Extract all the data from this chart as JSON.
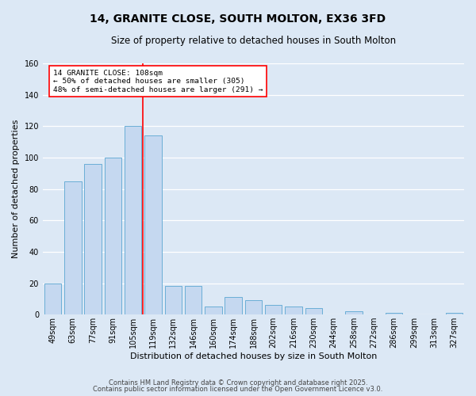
{
  "title": "14, GRANITE CLOSE, SOUTH MOLTON, EX36 3FD",
  "subtitle": "Size of property relative to detached houses in South Molton",
  "xlabel": "Distribution of detached houses by size in South Molton",
  "ylabel": "Number of detached properties",
  "bar_labels": [
    "49sqm",
    "63sqm",
    "77sqm",
    "91sqm",
    "105sqm",
    "119sqm",
    "132sqm",
    "146sqm",
    "160sqm",
    "174sqm",
    "188sqm",
    "202sqm",
    "216sqm",
    "230sqm",
    "244sqm",
    "258sqm",
    "272sqm",
    "286sqm",
    "299sqm",
    "313sqm",
    "327sqm"
  ],
  "bar_heights": [
    20,
    85,
    96,
    100,
    120,
    114,
    18,
    18,
    5,
    11,
    9,
    6,
    5,
    4,
    0,
    2,
    0,
    1,
    0,
    0,
    1
  ],
  "bar_color": "#c5d8f0",
  "bar_edge_color": "#6aaed6",
  "bar_width": 0.85,
  "vline_x": 4.5,
  "vline_color": "red",
  "ylim": [
    0,
    160
  ],
  "yticks": [
    0,
    20,
    40,
    60,
    80,
    100,
    120,
    140,
    160
  ],
  "annotation_text": "14 GRANITE CLOSE: 108sqm\n← 50% of detached houses are smaller (305)\n48% of semi-detached houses are larger (291) →",
  "footnote1": "Contains HM Land Registry data © Crown copyright and database right 2025.",
  "footnote2": "Contains public sector information licensed under the Open Government Licence v3.0.",
  "bg_color": "#dce8f5",
  "plot_bg_color": "#dce8f5",
  "grid_color": "#ffffff",
  "title_fontsize": 10,
  "subtitle_fontsize": 8.5,
  "axis_label_fontsize": 8,
  "tick_fontsize": 7,
  "footnote_fontsize": 6
}
